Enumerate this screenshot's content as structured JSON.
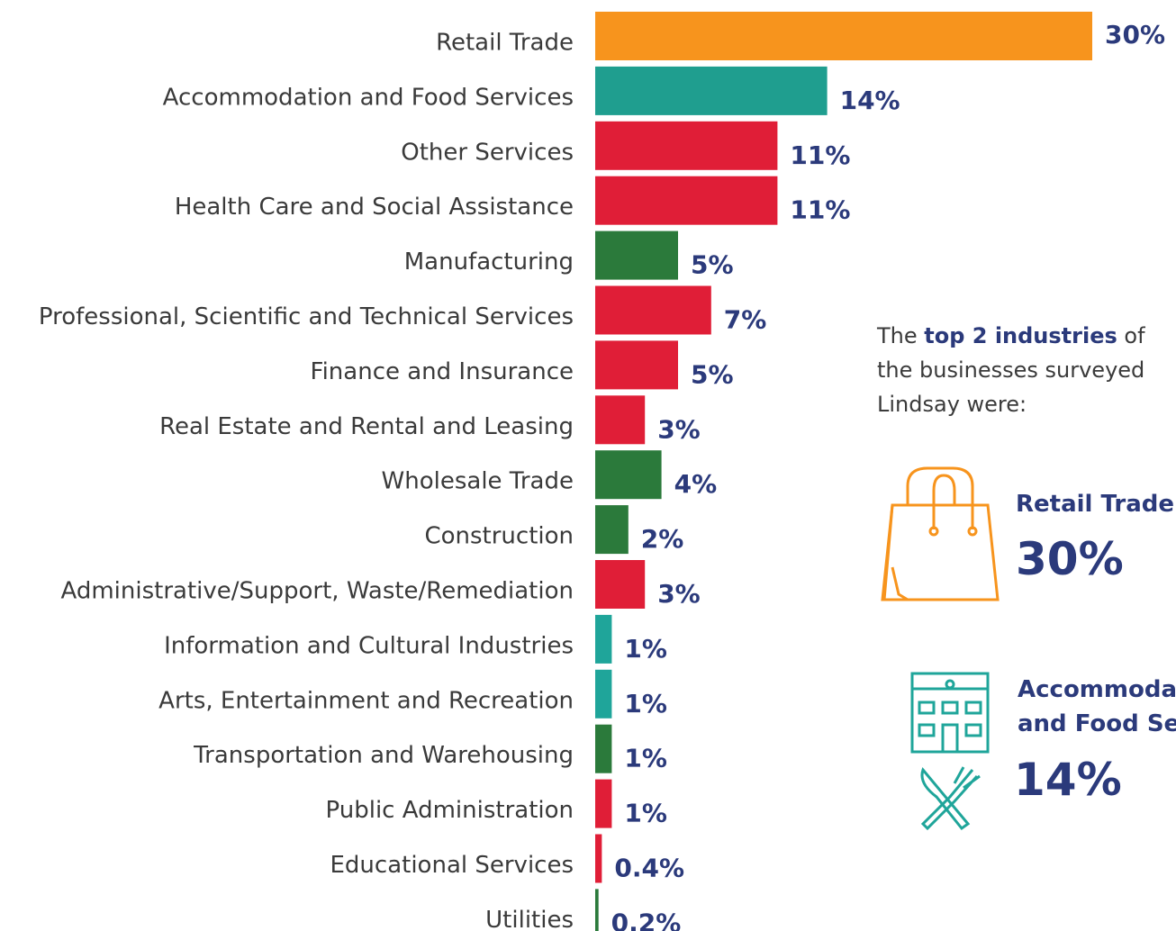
{
  "chart_data": {
    "type": "bar",
    "categories": [
      "Retail Trade",
      "Accommodation and Food Services",
      "Other Services",
      "Health Care and Social Assistance",
      "Manufacturing",
      "Professional, Scientific and Technical Services",
      "Finance and Insurance",
      "Real Estate and Rental and Leasing",
      "Wholesale Trade",
      "Construction",
      "Administrative/Support, Waste/Remediation",
      "Information and Cultural Industries",
      "Arts, Entertainment and Recreation",
      "Transportation and Warehousing",
      "Public Administration",
      "Educational Services",
      "Utilities"
    ],
    "values": [
      30,
      14,
      11,
      11,
      5,
      7,
      5,
      3,
      4,
      2,
      3,
      1,
      1,
      1,
      1,
      0.4,
      0.2
    ],
    "value_labels": [
      "30%",
      "14%",
      "11%",
      "11%",
      "5%",
      "7%",
      "5%",
      "3%",
      "4%",
      "2%",
      "3%",
      "1%",
      "1%",
      "1%",
      "1%",
      "0.4%",
      "0.2%"
    ],
    "colors": [
      "#f7941d",
      "#1f9e8f",
      "#e01e37",
      "#e01e37",
      "#2b7a3b",
      "#e01e37",
      "#e01e37",
      "#e01e37",
      "#2b7a3b",
      "#2b7a3b",
      "#e01e37",
      "#1fa59a",
      "#1fa59a",
      "#2b7a3b",
      "#e01e37",
      "#e01e37",
      "#2b7a3b"
    ]
  },
  "summary": {
    "intro_start": "The ",
    "intro_bold": "top 2 industries",
    "intro_end": " of",
    "intro_line2": "the businesses surveyed",
    "intro_line3": "Lindsay were:",
    "first_name": "Retail Trade",
    "first_value": "30%",
    "second_name_line1": "Accommodation",
    "second_name_line2": "and Food Services",
    "second_value": "14%"
  }
}
